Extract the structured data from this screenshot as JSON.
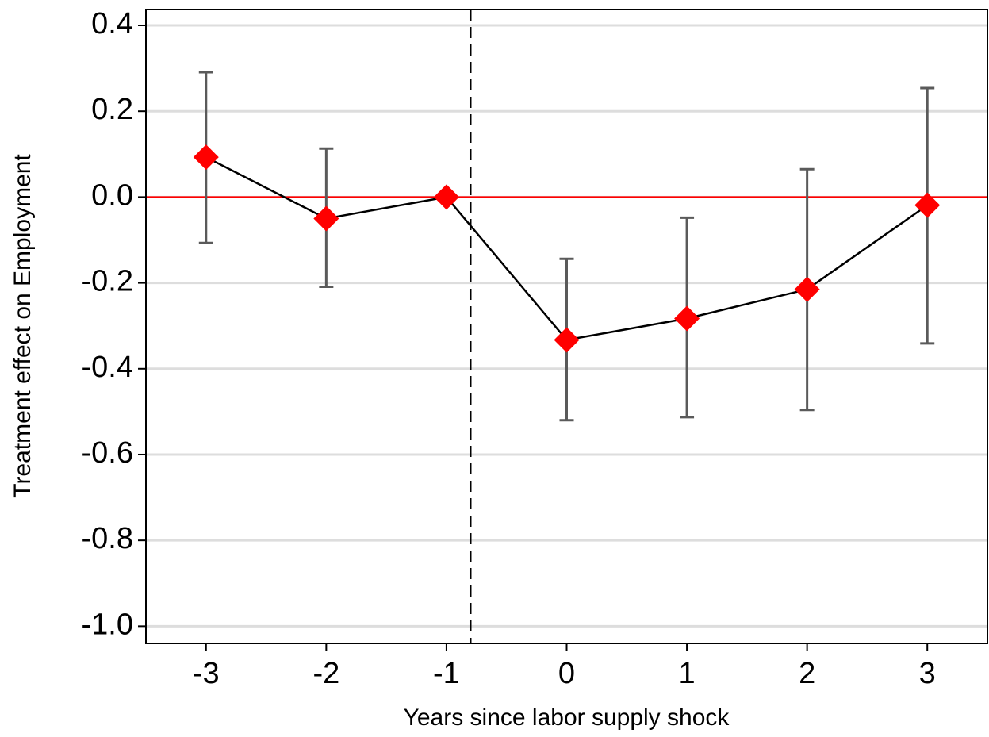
{
  "chart_data": {
    "type": "line",
    "x_label": "Years since labor supply shock",
    "y_label": "Treatment effect on Employment",
    "x": [
      -3,
      -2,
      -1,
      0,
      1,
      2,
      3
    ],
    "series": [
      {
        "color": "#ff0000",
        "line_color": "#000000",
        "error_color": "#5a5a5a",
        "values": [
          0.093,
          -0.05,
          0,
          -0.333,
          -0.283,
          -0.215,
          -0.019
        ],
        "ci_low": [
          -0.107,
          -0.209,
          null,
          -0.52,
          -0.513,
          -0.496,
          -0.341
        ],
        "ci_high": [
          0.291,
          0.113,
          null,
          -0.144,
          -0.048,
          0.065,
          0.254
        ]
      }
    ],
    "xlim": [
      -3.5,
      3.5
    ],
    "xticks": [
      -3,
      -2,
      -1,
      0,
      1,
      2,
      3
    ],
    "ylim": [
      -1.04,
      0.437
    ],
    "yticks": [
      {
        "value": -1,
        "label": "-1.0"
      },
      {
        "value": -0.8,
        "label": "-0.8"
      },
      {
        "value": -0.6,
        "label": "-0.6"
      },
      {
        "value": -0.4,
        "label": "-0.4"
      },
      {
        "value": -0.2,
        "label": "-0.2"
      },
      {
        "value": 0,
        "label": "0.0"
      },
      {
        "value": 0.2,
        "label": "0.2"
      },
      {
        "value": 0.4,
        "label": "0.4"
      }
    ],
    "grid": true,
    "grid_color": "#dddddd",
    "hline": 0,
    "hline_color": "#ff0000",
    "vline": -0.8,
    "vline_color": "#000000"
  }
}
